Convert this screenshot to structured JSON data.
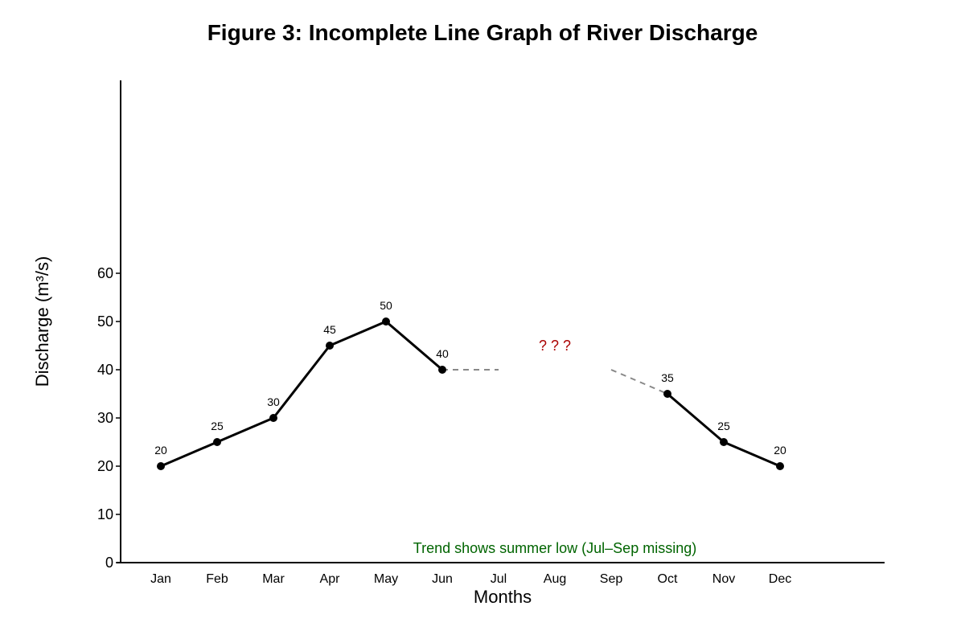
{
  "chart_data": {
    "type": "line",
    "title": "Figure 3: Incomplete Line Graph of River Discharge",
    "xlabel": "Months",
    "ylabel": "Discharge (m³/s)",
    "ylim": [
      0,
      100
    ],
    "yticks": [
      0,
      10,
      20,
      30,
      40,
      50,
      60
    ],
    "grid": false,
    "categories": [
      "Jan",
      "Feb",
      "Mar",
      "Apr",
      "May",
      "Jun",
      "Jul",
      "Aug",
      "Sep",
      "Oct",
      "Nov",
      "Dec"
    ],
    "series": [
      {
        "values": [
          20,
          25,
          30,
          45,
          50,
          40,
          null,
          null,
          null,
          35,
          25,
          20
        ]
      }
    ],
    "gap_guides": [
      {
        "from": {
          "x": "Jun",
          "y": 40
        },
        "to": {
          "x": "Jul",
          "y": 40
        }
      },
      {
        "from": {
          "x": "Sep",
          "y": 40
        },
        "to": {
          "x": "Oct",
          "y": 35
        }
      }
    ],
    "annotations": {
      "missing_marker": {
        "text": "? ? ?",
        "x": "Aug",
        "y": 44
      },
      "note": {
        "text": "Trend shows summer low (Jul–Sep missing)",
        "x": "Aug",
        "y": 2
      }
    },
    "colors": {
      "line": "#000000",
      "guide": "#888888",
      "missing_marker": "#aa0000",
      "note": "#006400"
    }
  }
}
